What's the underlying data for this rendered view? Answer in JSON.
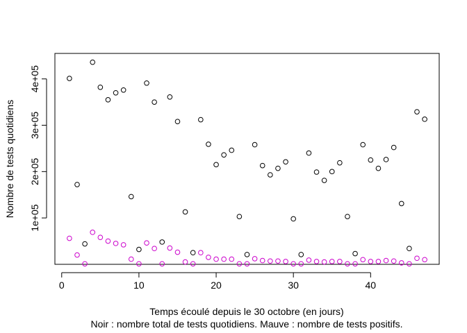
{
  "chart_data": {
    "type": "scatter",
    "title": "",
    "xlabel": "Temps écoulé depuis le 30 octobre (en jours)",
    "xlabel_line2": "Noir : nombre total de tests quotidiens. Mauve : nombre de tests positifs.",
    "ylabel": "Nombre de tests quotidiens",
    "xlim": [
      -0.88,
      48.88
    ],
    "ylim": [
      -100,
      455000
    ],
    "xticks": [
      0,
      10,
      20,
      30,
      40
    ],
    "yticks": [
      100000,
      200000,
      300000,
      400000
    ],
    "ytick_labels": [
      "1e+05",
      "2e+05",
      "3e+05",
      "4e+05"
    ],
    "grid": false,
    "legend": "none",
    "series": [
      {
        "color": "#000000",
        "x": [
          1,
          2,
          3,
          4,
          5,
          6,
          7,
          8,
          9,
          10,
          11,
          12,
          13,
          14,
          15,
          16,
          17,
          18,
          19,
          20,
          21,
          22,
          23,
          24,
          25,
          26,
          27,
          28,
          29,
          30,
          31,
          32,
          33,
          34,
          35,
          36,
          37,
          38,
          39,
          40,
          41,
          42,
          43,
          44,
          45,
          46,
          47
        ],
        "values": [
          401000,
          172000,
          44000,
          436000,
          382000,
          355000,
          370000,
          376000,
          146000,
          32000,
          391000,
          350000,
          48000,
          361000,
          308000,
          113000,
          25000,
          312000,
          259000,
          215000,
          236000,
          246000,
          103000,
          21000,
          258000,
          213000,
          193000,
          207000,
          221000,
          98000,
          21000,
          240000,
          199000,
          181000,
          200000,
          219000,
          103000,
          23000,
          258000,
          225000,
          207000,
          226000,
          252000,
          131000,
          34000,
          329000,
          313000
        ]
      },
      {
        "color": "#cc00cc",
        "x": [
          1,
          2,
          3,
          4,
          5,
          6,
          7,
          8,
          9,
          10,
          11,
          12,
          13,
          14,
          15,
          16,
          17,
          18,
          19,
          20,
          21,
          22,
          23,
          24,
          25,
          26,
          27,
          28,
          29,
          30,
          31,
          32,
          33,
          34,
          35,
          36,
          37,
          38,
          39,
          40,
          41,
          42,
          43,
          44,
          45,
          46,
          47
        ],
        "values": [
          56000,
          20000,
          1000,
          69000,
          58000,
          50000,
          45000,
          42000,
          11000,
          1000,
          46000,
          34000,
          1000,
          35000,
          26000,
          5000,
          1000,
          25000,
          15000,
          11000,
          11000,
          11000,
          1000,
          1000,
          12000,
          8000,
          7000,
          7000,
          6000,
          1000,
          1000,
          9000,
          6000,
          5000,
          6000,
          6000,
          1000,
          1000,
          10000,
          6000,
          6000,
          8000,
          7000,
          3000,
          1000,
          13000,
          10000
        ]
      }
    ]
  }
}
